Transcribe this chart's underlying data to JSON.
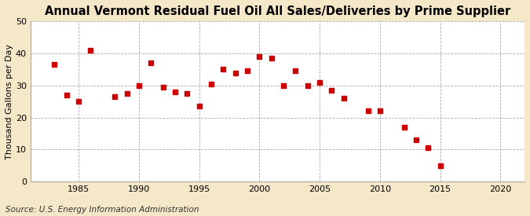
{
  "title": "Annual Vermont Residual Fuel Oil All Sales/Deliveries by Prime Supplier",
  "ylabel": "Thousand Gallons per Day",
  "source": "Source: U.S. Energy Information Administration",
  "figure_bg_color": "#f5e8c8",
  "plot_bg_color": "#ffffff",
  "marker_color": "#cc0000",
  "years": [
    1983,
    1984,
    1985,
    1986,
    1988,
    1989,
    1990,
    1991,
    1992,
    1993,
    1994,
    1995,
    1996,
    1997,
    1998,
    1999,
    2000,
    2001,
    2002,
    2003,
    2004,
    2005,
    2006,
    2007,
    2009,
    2010,
    2012,
    2013,
    2014,
    2015
  ],
  "values": [
    36.5,
    27,
    25,
    41,
    26.5,
    27.5,
    30,
    37,
    29.5,
    28,
    27.5,
    23.5,
    30.5,
    35,
    34,
    34.5,
    39,
    38.5,
    30,
    34.5,
    30,
    31,
    28.5,
    26,
    22,
    22,
    17,
    13,
    10.5,
    5
  ],
  "xlim": [
    1981,
    2022
  ],
  "ylim": [
    0,
    50
  ],
  "xticks": [
    1985,
    1990,
    1995,
    2000,
    2005,
    2010,
    2015,
    2020
  ],
  "yticks": [
    0,
    10,
    20,
    30,
    40,
    50
  ],
  "title_fontsize": 10.5,
  "label_fontsize": 8,
  "tick_fontsize": 8,
  "source_fontsize": 7.5
}
